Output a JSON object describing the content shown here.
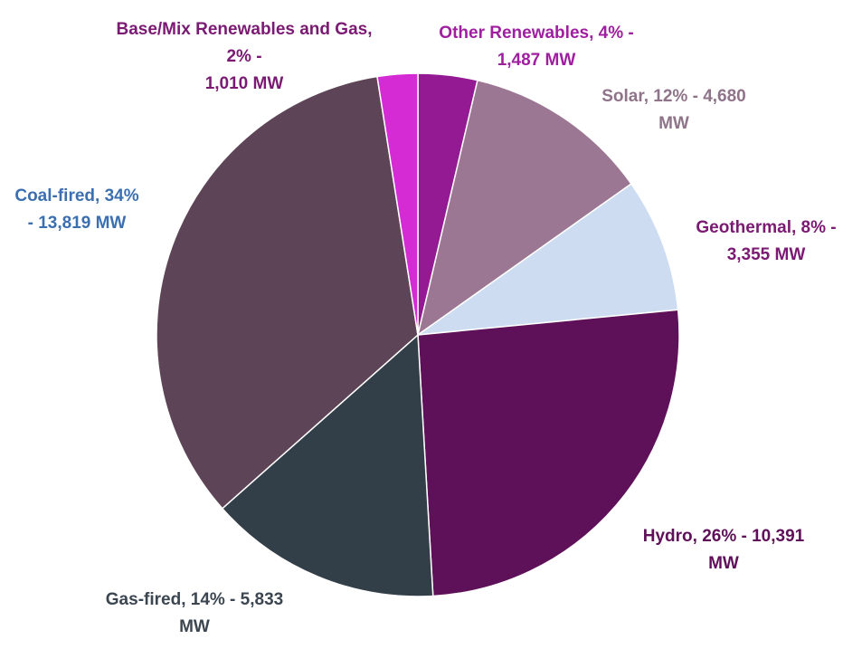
{
  "chart_data": {
    "type": "pie",
    "slices": [
      {
        "name": "Other Renewables",
        "percent": 4,
        "mw": 1487,
        "color": "#941a94",
        "label_color": "#a01fa0",
        "label_lines": [
          "Other Renewables, 4% -",
          "1,487 MW"
        ]
      },
      {
        "name": "Solar",
        "percent": 12,
        "mw": 4680,
        "color": "#9c7793",
        "label_color": "#8f7489",
        "label_lines": [
          "Solar, 12% - 4,680",
          "MW"
        ]
      },
      {
        "name": "Geothermal",
        "percent": 8,
        "mw": 3355,
        "color": "#cddcf1",
        "label_color": "#7b1a73",
        "label_lines": [
          "Geothermal, 8% -",
          "3,355 MW"
        ]
      },
      {
        "name": "Hydro",
        "percent": 26,
        "mw": 10391,
        "color": "#5e1058",
        "label_color": "#5e1058",
        "label_lines": [
          "Hydro, 26% - 10,391",
          "MW"
        ]
      },
      {
        "name": "Gas-fired",
        "percent": 14,
        "mw": 5833,
        "color": "#323e48",
        "label_color": "#3b4650",
        "label_lines": [
          "Gas-fired, 14% - 5,833",
          "MW"
        ]
      },
      {
        "name": "Coal-fired",
        "percent": 34,
        "mw": 13819,
        "color": "#5d4557",
        "label_color": "#3c6fb0",
        "label_lines": [
          "Coal-fired, 34%",
          "- 13,819 MW"
        ]
      },
      {
        "name": "Base/Mix Renewables and Gas",
        "percent": 2,
        "mw": 1010,
        "color": "#d52bd5",
        "label_color": "#7b1a73",
        "label_lines": [
          "Base/Mix Renewables and Gas,",
          "2% -",
          "1,010 MW"
        ]
      }
    ]
  }
}
